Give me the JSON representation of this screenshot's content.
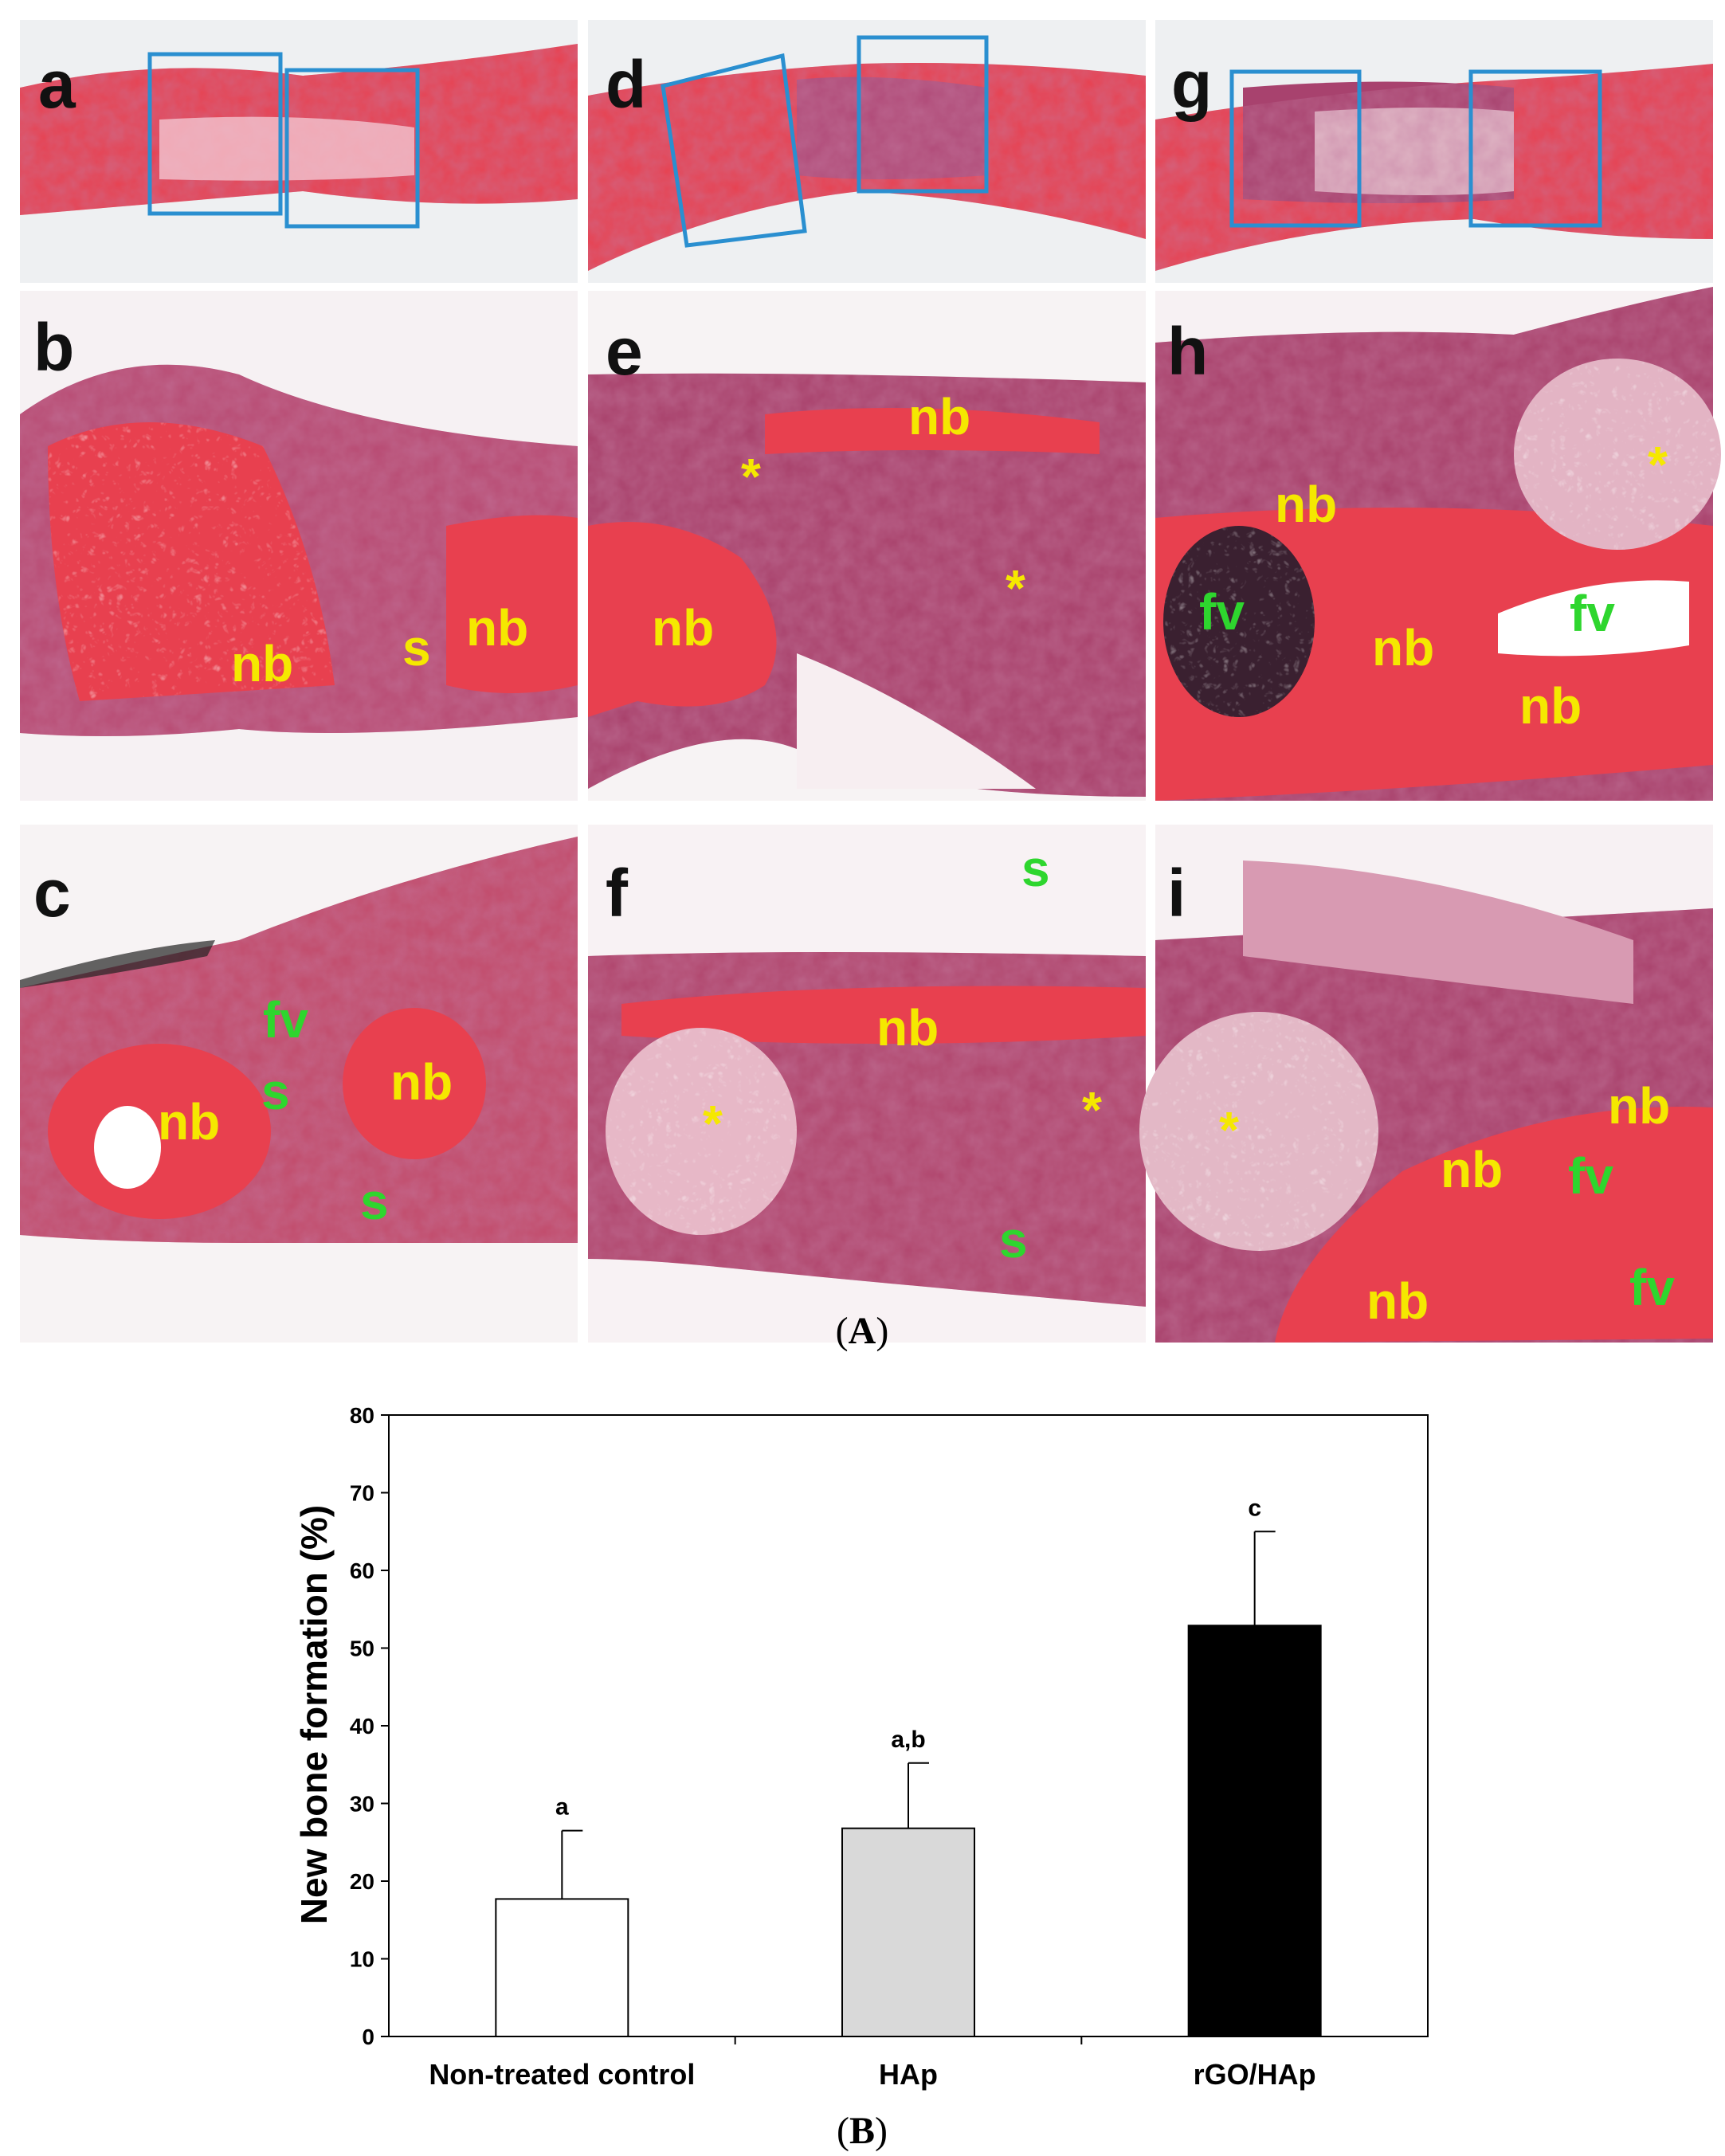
{
  "figure": {
    "caption_a": "A",
    "caption_b": "B",
    "bracket_open": "(",
    "bracket_close": ")"
  },
  "panels": [
    {
      "letter": "a",
      "labels": []
    },
    {
      "letter": "b",
      "labels": [
        {
          "text": "nb",
          "color": "yellow"
        },
        {
          "text": "s",
          "color": "yellow"
        },
        {
          "text": "nb",
          "color": "yellow"
        }
      ]
    },
    {
      "letter": "c",
      "labels": [
        {
          "text": "fv",
          "color": "green"
        },
        {
          "text": "s",
          "color": "green"
        },
        {
          "text": "nb",
          "color": "yellow"
        },
        {
          "text": "nb",
          "color": "yellow"
        },
        {
          "text": "s",
          "color": "green"
        }
      ]
    },
    {
      "letter": "d",
      "labels": []
    },
    {
      "letter": "e",
      "labels": [
        {
          "text": "nb",
          "color": "yellow"
        },
        {
          "text": "*",
          "color": "yellow"
        },
        {
          "text": "*",
          "color": "yellow"
        },
        {
          "text": "nb",
          "color": "yellow"
        }
      ]
    },
    {
      "letter": "f",
      "labels": [
        {
          "text": "s",
          "color": "green"
        },
        {
          "text": "nb",
          "color": "yellow"
        },
        {
          "text": "*",
          "color": "yellow"
        },
        {
          "text": "*",
          "color": "yellow"
        },
        {
          "text": "s",
          "color": "green"
        }
      ]
    },
    {
      "letter": "g",
      "labels": []
    },
    {
      "letter": "h",
      "labels": [
        {
          "text": "*",
          "color": "yellow"
        },
        {
          "text": "nb",
          "color": "yellow"
        },
        {
          "text": "fv",
          "color": "green"
        },
        {
          "text": "fv",
          "color": "green"
        },
        {
          "text": "nb",
          "color": "yellow"
        },
        {
          "text": "nb",
          "color": "yellow"
        }
      ]
    },
    {
      "letter": "i",
      "labels": [
        {
          "text": "*",
          "color": "yellow"
        },
        {
          "text": "nb",
          "color": "yellow"
        },
        {
          "text": "nb",
          "color": "yellow"
        },
        {
          "text": "fv",
          "color": "green"
        },
        {
          "text": "nb",
          "color": "yellow"
        },
        {
          "text": "fv",
          "color": "green"
        }
      ]
    }
  ],
  "colors": {
    "tissue_pink": "#e8404f",
    "tissue_dark": "#a8406a",
    "tissue_light": "#f2d8e0",
    "background": "#eef0f2",
    "box_blue": "#2a8fd0",
    "label_yellow": "#f5e800",
    "label_green": "#2ed62e"
  },
  "chart_data": {
    "type": "bar",
    "categories": [
      "Non-treated control",
      "HAp",
      "rGO/HAp"
    ],
    "values": [
      17.7,
      26.8,
      52.9
    ],
    "errors": [
      8.8,
      8.4,
      12.1
    ],
    "significance": [
      "a",
      "a,b",
      "c"
    ],
    "bar_colors": [
      "#ffffff",
      "#d9d9d9",
      "#000000"
    ],
    "ylabel": "New bone formation (%)",
    "ylim": [
      0,
      80
    ],
    "yticks": [
      "0",
      "10",
      "20",
      "30",
      "40",
      "50",
      "60",
      "70",
      "80"
    ]
  }
}
